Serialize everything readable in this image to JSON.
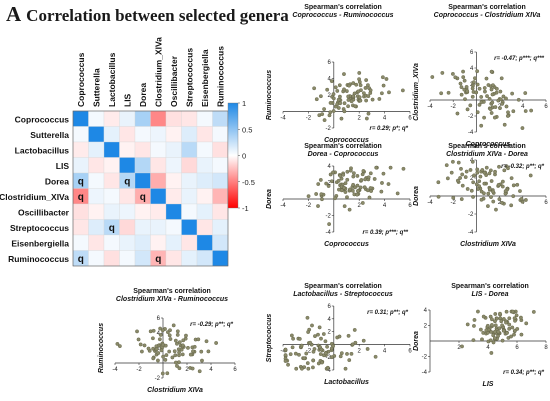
{
  "header": {
    "letter": "A",
    "title": "Correlation between selected genera"
  },
  "chart_data": [
    {
      "type": "heatmap",
      "rows": [
        "Coprococcus",
        "Sutterella",
        "Lactobacillus",
        "LIS",
        "Dorea",
        "Clostridium_XIVa",
        "Oscillibacter",
        "Streptococcus",
        "Eisenbergiella",
        "Ruminococcus"
      ],
      "columns": [
        "Coprococcus",
        "Sutterella",
        "Lactobacillus",
        "LIS",
        "Dorea",
        "Clostridium_XIVa",
        "Oscillibacter",
        "Streptococcus",
        "Eisenbergiella",
        "Ruminococcus"
      ],
      "values": [
        [
          1,
          0.05,
          -0.08,
          0.1,
          0.39,
          -0.47,
          -0.12,
          -0.1,
          0.05,
          0.29
        ],
        [
          0.05,
          1,
          0.12,
          -0.1,
          0.05,
          0.08,
          -0.05,
          0.15,
          -0.1,
          0.05
        ],
        [
          -0.08,
          0.12,
          1,
          -0.05,
          -0.1,
          0.05,
          0.1,
          0.31,
          0.05,
          -0.12
        ],
        [
          0.1,
          -0.1,
          -0.05,
          1,
          0.34,
          -0.1,
          0.08,
          -0.15,
          0.1,
          0.05
        ],
        [
          0.39,
          0.05,
          -0.1,
          0.34,
          1,
          -0.32,
          -0.05,
          0.1,
          0.15,
          0.2
        ],
        [
          -0.47,
          0.08,
          0.05,
          -0.1,
          -0.32,
          1,
          -0.08,
          0.1,
          -0.05,
          -0.29
        ],
        [
          -0.12,
          -0.05,
          0.1,
          0.08,
          -0.05,
          -0.08,
          1,
          0.05,
          0.12,
          -0.1
        ],
        [
          -0.1,
          0.15,
          0.31,
          -0.15,
          0.1,
          0.1,
          0.05,
          1,
          -0.1,
          0.12
        ],
        [
          0.05,
          -0.1,
          0.05,
          0.1,
          0.15,
          -0.05,
          0.12,
          -0.1,
          1,
          0.2
        ],
        [
          0.29,
          0.05,
          -0.12,
          0.05,
          0.2,
          -0.29,
          -0.1,
          0.12,
          0.2,
          1
        ]
      ],
      "significant": [
        [
          4,
          0
        ],
        [
          5,
          0
        ],
        [
          9,
          0
        ],
        [
          4,
          3
        ],
        [
          7,
          2
        ],
        [
          5,
          4
        ],
        [
          9,
          5
        ]
      ],
      "marker": "q",
      "colorbar": {
        "ticks": [
          "1",
          "0.5",
          "0",
          "-0.5",
          "-1"
        ],
        "low": "#ff0000",
        "mid": "#ffffff",
        "high": "#1e88e5"
      }
    },
    {
      "type": "scatter",
      "title": "Spearman's correlation",
      "subtitle": "Coprococcus - Ruminococcus",
      "xlabel": "Coprococcus",
      "ylabel": "Ruminococcus",
      "annotation": "r= 0.29; p*; q*",
      "r": 0.29,
      "xlim": [
        -4,
        6
      ],
      "ylim": [
        -2,
        6
      ],
      "xticks": [
        "-4",
        "-2",
        "2",
        "4",
        "6"
      ],
      "yticks": [
        "-2",
        "2",
        "4",
        "6"
      ],
      "n": 90,
      "cx": 1.5,
      "cy": 2,
      "sx": 1.5,
      "sy": 1.3
    },
    {
      "type": "scatter",
      "title": "Spearman's correlation",
      "subtitle": "Coprococcus - Clostridium XIVa",
      "xlabel": "Coprococcus",
      "ylabel": "Clostridium_XIVa",
      "annotation": "r= -0.47; p***; q***",
      "r": -0.47,
      "xlim": [
        -4,
        6
      ],
      "ylim": [
        -4,
        6
      ],
      "xticks": [
        "-4",
        "-2",
        "2",
        "4",
        "6"
      ],
      "yticks": [
        "-4",
        "-2",
        "2",
        "4",
        "6"
      ],
      "n": 90,
      "cx": 0.8,
      "cy": 0.5,
      "sx": 1.6,
      "sy": 1.5
    },
    {
      "type": "scatter",
      "title": "Spearman's correlation",
      "subtitle": "Dorea - Coprococcus",
      "xlabel": "Coprococcus",
      "ylabel": "Dorea",
      "annotation": "r= 0.39; p***; q**",
      "r": 0.39,
      "xlim": [
        -4,
        6
      ],
      "ylim": [
        -4,
        4
      ],
      "xticks": [
        "-4",
        "-2",
        "2",
        "4",
        "6"
      ],
      "yticks": [
        "-4",
        "-2",
        "2",
        "4"
      ],
      "n": 90,
      "cx": 1.5,
      "cy": 1.8,
      "sx": 1.5,
      "sy": 1.3
    },
    {
      "type": "scatter",
      "title": "Spearman's correlation",
      "subtitle": "Clostridium XIVa - Dorea",
      "xlabel": "Clostridium XIVa",
      "ylabel": "Dorea",
      "annotation": "r= -0.32; p**; q*",
      "r": -0.32,
      "xlim": [
        -4,
        6
      ],
      "ylim": [
        -4,
        4
      ],
      "xticks": [
        "-4",
        "-2",
        "2",
        "4",
        "6"
      ],
      "yticks": [
        "-4",
        "-2",
        "2",
        "4"
      ],
      "n": 90,
      "cx": 0.8,
      "cy": 1.5,
      "sx": 1.6,
      "sy": 1.3
    },
    {
      "type": "scatter",
      "title": "Spearman's correlation",
      "subtitle": "Clostridium XIVa - Ruminococcus",
      "xlabel": "Clostridium XIVa",
      "ylabel": "Ruminococcus",
      "annotation": "r= -0.29; p**; q*",
      "r": -0.29,
      "xlim": [
        -4,
        6
      ],
      "ylim": [
        -2,
        6
      ],
      "xticks": [
        "-4",
        "-2",
        "2",
        "4",
        "6"
      ],
      "yticks": [
        "-2",
        "2",
        "4",
        "6"
      ],
      "n": 90,
      "cx": 0.5,
      "cy": 2,
      "sx": 1.6,
      "sy": 1.3
    },
    {
      "type": "scatter",
      "title": "Spearman's correlation",
      "subtitle": "Lactobacillus - Streptococcus",
      "xlabel": "Lactobacillus",
      "ylabel": "Streptococcus",
      "annotation": "r= 0.31; p**; q*",
      "r": 0.31,
      "xlim": [
        -4,
        6
      ],
      "ylim": [
        -4,
        6
      ],
      "xticks": [
        "-4",
        "-2",
        "2",
        "4",
        "6"
      ],
      "yticks": [
        "-4",
        "-2",
        "2",
        "4",
        "6"
      ],
      "n": 90,
      "cx": -1.5,
      "cy": -1,
      "sx": 1.8,
      "sy": 1.8
    },
    {
      "type": "scatter",
      "title": "Spearman's correlation",
      "subtitle": "LIS - Dorea",
      "xlabel": "LIS",
      "ylabel": "Dorea",
      "annotation": "r= 0.34; p**; q*",
      "r": 0.34,
      "xlim": [
        0,
        8
      ],
      "ylim": [
        -4,
        4
      ],
      "xticks": [
        "2",
        "4",
        "6",
        "8"
      ],
      "yticks": [
        "-4",
        "-2",
        "2",
        "4"
      ],
      "n": 90,
      "cx": 4.8,
      "cy": 1.8,
      "sx": 1.0,
      "sy": 1.3
    }
  ],
  "colors": {
    "point_fill": "#8a8a6a",
    "point_stroke": "#5c5c40",
    "axis": "#333333"
  }
}
